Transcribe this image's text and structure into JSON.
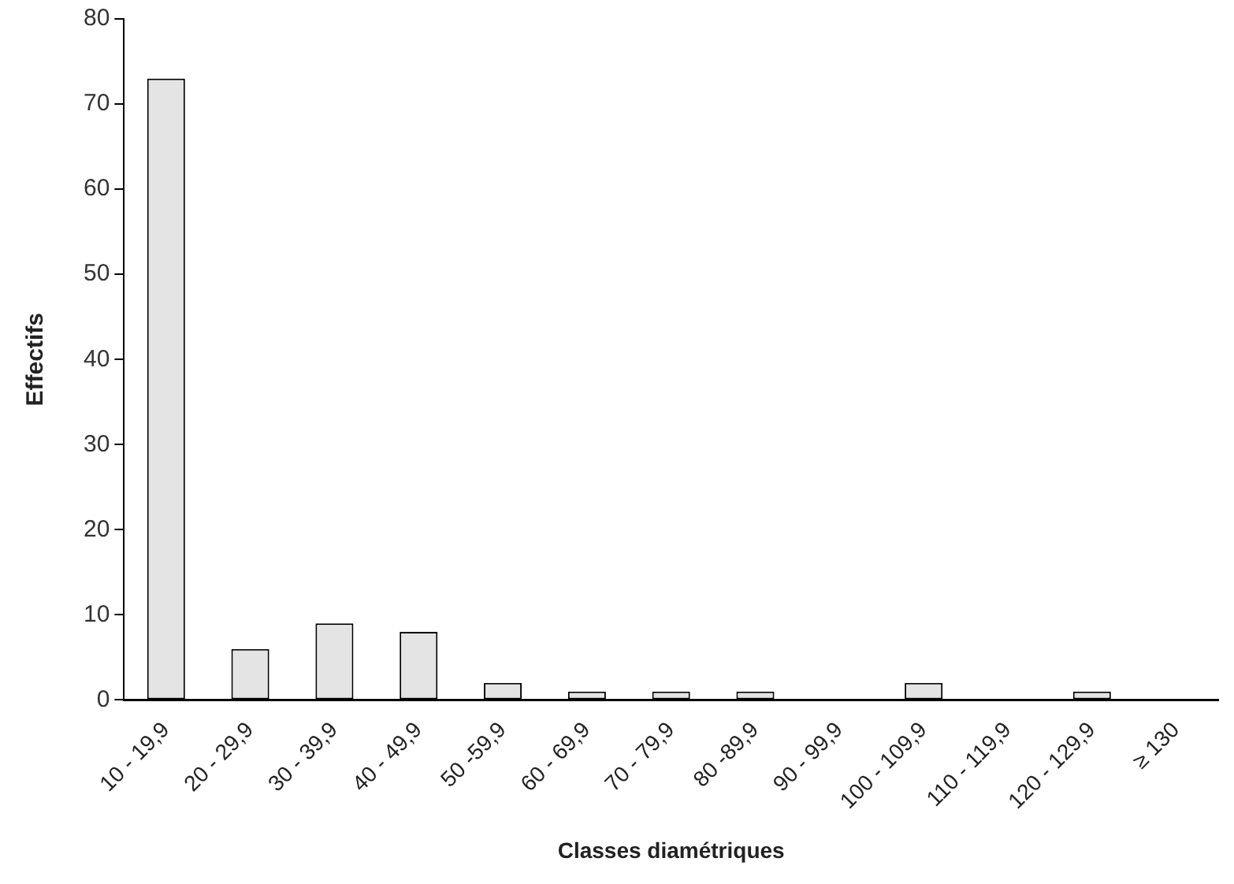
{
  "chart_data": {
    "type": "bar",
    "xlabel": "Classes diamétriques",
    "ylabel": "Effectifs",
    "categories": [
      "10 - 19,9",
      "20 - 29,9",
      "30 - 39,9",
      "40 - 49,9",
      "50 -59,9",
      "60 - 69,9",
      "70 - 79,9",
      "80 -89,9",
      "90 - 99,9",
      "100 - 109,9",
      "110 - 119,9",
      "120 - 129,9",
      "≥ 130"
    ],
    "values": [
      73,
      6,
      9,
      8,
      2,
      1,
      1,
      1,
      0,
      2,
      0,
      1,
      0
    ],
    "color": "#e4e4e4",
    "ylim": [
      0,
      80
    ],
    "yticks": [
      0,
      10,
      20,
      30,
      40,
      50,
      60,
      70,
      80
    ],
    "grid": false,
    "legend": false
  }
}
